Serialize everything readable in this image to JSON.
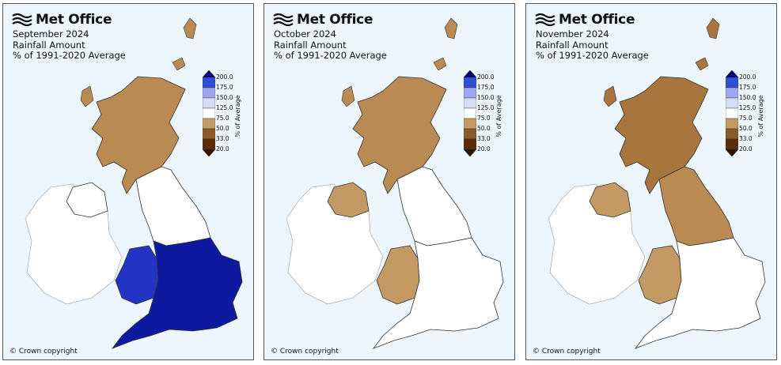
{
  "brand": {
    "name": "Met Office",
    "logo_icon": "met-office-wave-icon"
  },
  "legend": {
    "unit_label": "% of Average",
    "ticks": [
      "200.0",
      "175.0",
      "150.0",
      "125.0",
      "75.0",
      "50.0",
      "33.0",
      "20.0"
    ],
    "colors": [
      "#00007f",
      "#2f4fd7",
      "#9ea8f0",
      "#d6dcf7",
      "#ffffff",
      "#c39a64",
      "#8a5a2c",
      "#5a2e0d",
      "#2f1400"
    ]
  },
  "panels": [
    {
      "month": "September 2024",
      "metric": "Rainfall Amount",
      "baseline": "% of 1991-2020 Average",
      "copyright": "© Crown copyright",
      "scotland_fill": "#b98a52",
      "north_england_fill": "#ffffff",
      "south_fill": "#0d1aa0",
      "ni_fill": "#ffffff",
      "wales_fill": "#2334c5"
    },
    {
      "month": "October 2024",
      "metric": "Rainfall Amount",
      "baseline": "% of 1991-2020 Average",
      "copyright": "© Crown copyright",
      "scotland_fill": "#b98a52",
      "north_england_fill": "#ffffff",
      "south_fill": "#ffffff",
      "ni_fill": "#c39a64",
      "wales_fill": "#c39a64"
    },
    {
      "month": "November 2024",
      "metric": "Rainfall Amount",
      "baseline": "% of 1991-2020 Average",
      "copyright": "© Crown copyright",
      "scotland_fill": "#a8753d",
      "north_england_fill": "#b98a52",
      "south_fill": "#ffffff",
      "ni_fill": "#c39a64",
      "wales_fill": "#c39a64"
    }
  ]
}
